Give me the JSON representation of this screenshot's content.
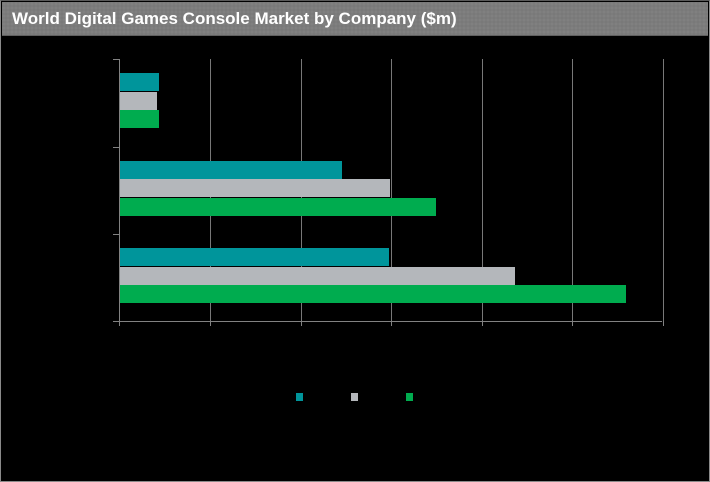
{
  "window": {
    "title": "World Digital Games Console Market by Company ($m)"
  },
  "colors": {
    "background": "#000000",
    "titlebar_bg": "#7c7c7c",
    "title_text": "#ffffff",
    "axis_line": "#828282",
    "gridline": "#787878",
    "teal": "#00959b",
    "silver": "#b4b7bb",
    "green": "#00ac4f"
  },
  "legend": {
    "position": "bottom-center",
    "swatches": [
      {
        "name": "teal-series-swatch",
        "color": "#00959b",
        "label": ""
      },
      {
        "name": "silver-series-swatch",
        "color": "#b4b7bb",
        "label": ""
      },
      {
        "name": "green-series-swatch",
        "color": "#00ac4f",
        "label": ""
      }
    ]
  },
  "chart_data": {
    "type": "bar",
    "orientation": "horizontal",
    "title": "World Digital Games Console Market by Company ($m)",
    "categories": [
      "",
      "",
      ""
    ],
    "series": [
      {
        "name": "",
        "color": "#00959b",
        "values": [
          0.43,
          2.45,
          2.97
        ]
      },
      {
        "name": "",
        "color": "#b4b7bb",
        "values": [
          0.41,
          2.98,
          4.36
        ]
      },
      {
        "name": "",
        "color": "#00ac4f",
        "values": [
          0.43,
          3.49,
          5.59
        ]
      }
    ],
    "value_units": "x-axis gridline intervals (axis tick labels not visible in image)",
    "xlim": [
      0,
      6
    ],
    "x_gridline_interval": 1,
    "grid": true,
    "tick_labels_visible": false,
    "category_tick_marks": 4,
    "legend_position": "bottom"
  }
}
